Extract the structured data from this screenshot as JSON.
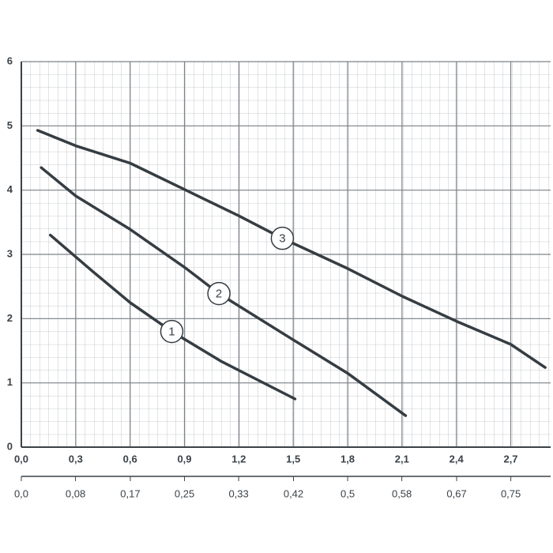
{
  "chart_data": {
    "type": "line",
    "series": [
      {
        "name": "1",
        "color": "#363d42",
        "x": [
          0.16,
          0.4,
          0.6,
          0.83,
          1.1,
          1.51
        ],
        "values": [
          3.3,
          2.72,
          2.25,
          1.8,
          1.34,
          0.75
        ]
      },
      {
        "name": "2",
        "color": "#363d42",
        "x": [
          0.11,
          0.3,
          0.6,
          0.9,
          1.09,
          1.5,
          1.8,
          2.12
        ],
        "values": [
          4.35,
          3.91,
          3.39,
          2.8,
          2.39,
          1.67,
          1.15,
          0.49
        ]
      },
      {
        "name": "3",
        "color": "#363d42",
        "x": [
          0.09,
          0.3,
          0.6,
          0.9,
          1.2,
          1.44,
          1.8,
          2.1,
          2.4,
          2.7,
          2.89
        ],
        "values": [
          4.93,
          4.69,
          4.42,
          4.01,
          3.6,
          3.25,
          2.78,
          2.35,
          1.96,
          1.6,
          1.24
        ]
      }
    ],
    "xlim": [
      0,
      2.92
    ],
    "ylim": [
      0,
      6
    ],
    "xticks": [
      {
        "value": 0,
        "label": "0,0"
      },
      {
        "value": 0.3,
        "label": "0,3"
      },
      {
        "value": 0.6,
        "label": "0,6"
      },
      {
        "value": 0.9,
        "label": "0,9"
      },
      {
        "value": 1.2,
        "label": "1,2"
      },
      {
        "value": 1.5,
        "label": "1,5"
      },
      {
        "value": 1.8,
        "label": "1,8"
      },
      {
        "value": 2.1,
        "label": "2,1"
      },
      {
        "value": 2.4,
        "label": "2,4"
      },
      {
        "value": 2.7,
        "label": "2,7"
      }
    ],
    "yticks": [
      0,
      1,
      2,
      3,
      4,
      5,
      6
    ],
    "x2lim": [
      0,
      0.811
    ],
    "x2ticks": [
      {
        "value": 0,
        "label": "0,0"
      },
      {
        "value": 0.083,
        "label": "0,08"
      },
      {
        "value": 0.167,
        "label": "0,17"
      },
      {
        "value": 0.25,
        "label": "0,25"
      },
      {
        "value": 0.333,
        "label": "0,33"
      },
      {
        "value": 0.417,
        "label": "0,42"
      },
      {
        "value": 0.5,
        "label": "0,5"
      },
      {
        "value": 0.583,
        "label": "0,58"
      },
      {
        "value": 0.667,
        "label": "0,67"
      },
      {
        "value": 0.75,
        "label": "0,75"
      }
    ],
    "grid": true
  }
}
